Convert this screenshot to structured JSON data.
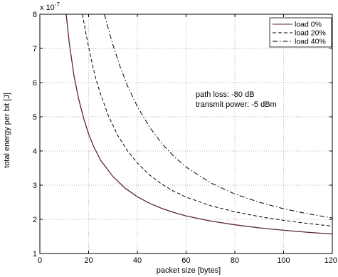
{
  "chart_data": {
    "type": "line",
    "title": "",
    "xlabel": "packet size [bytes]",
    "ylabel": "total energy per bit [J]",
    "y_exponent_label": "x 10",
    "y_exponent_power": "-7",
    "xlim": [
      0,
      120
    ],
    "ylim": [
      1,
      8
    ],
    "x_ticks": [
      "0",
      "20",
      "40",
      "60",
      "80",
      "100",
      "120"
    ],
    "y_ticks": [
      "1",
      "2",
      "3",
      "4",
      "5",
      "6",
      "7",
      "8"
    ],
    "grid": true,
    "legend_position": "top-right",
    "annotations": [
      "path loss: -80 dB",
      "transmit power: -5 dBm"
    ],
    "series": [
      {
        "name": "load 0%",
        "color": "#5a2338",
        "dash": "solid",
        "x": [
          10.8,
          12,
          14,
          16,
          18,
          20,
          22,
          25,
          30,
          35,
          40,
          45,
          50,
          55,
          60,
          70,
          80,
          90,
          100,
          110,
          120
        ],
        "y": [
          8.0,
          7.2,
          6.2,
          5.5,
          4.95,
          4.5,
          4.14,
          3.72,
          3.25,
          2.91,
          2.66,
          2.47,
          2.32,
          2.2,
          2.1,
          1.95,
          1.84,
          1.75,
          1.68,
          1.62,
          1.57
        ]
      },
      {
        "name": "load 20%",
        "color": "#000000",
        "dash": "dashed",
        "x": [
          17.5,
          19,
          21,
          23,
          25,
          28,
          32,
          36,
          40,
          45,
          50,
          55,
          60,
          70,
          80,
          90,
          100,
          110,
          120
        ],
        "y": [
          8.0,
          7.4,
          6.7,
          6.1,
          5.65,
          5.05,
          4.45,
          4.0,
          3.65,
          3.3,
          3.03,
          2.82,
          2.65,
          2.4,
          2.22,
          2.08,
          1.97,
          1.88,
          1.8
        ]
      },
      {
        "name": "load 40%",
        "color": "#000000",
        "dash": "dashdot",
        "x": [
          26.5,
          28,
          30,
          33,
          36,
          40,
          45,
          50,
          55,
          60,
          70,
          80,
          90,
          100,
          110,
          120
        ],
        "y": [
          8.0,
          7.6,
          7.1,
          6.45,
          5.9,
          5.3,
          4.7,
          4.22,
          3.84,
          3.53,
          3.07,
          2.74,
          2.5,
          2.31,
          2.16,
          2.04
        ]
      }
    ]
  }
}
